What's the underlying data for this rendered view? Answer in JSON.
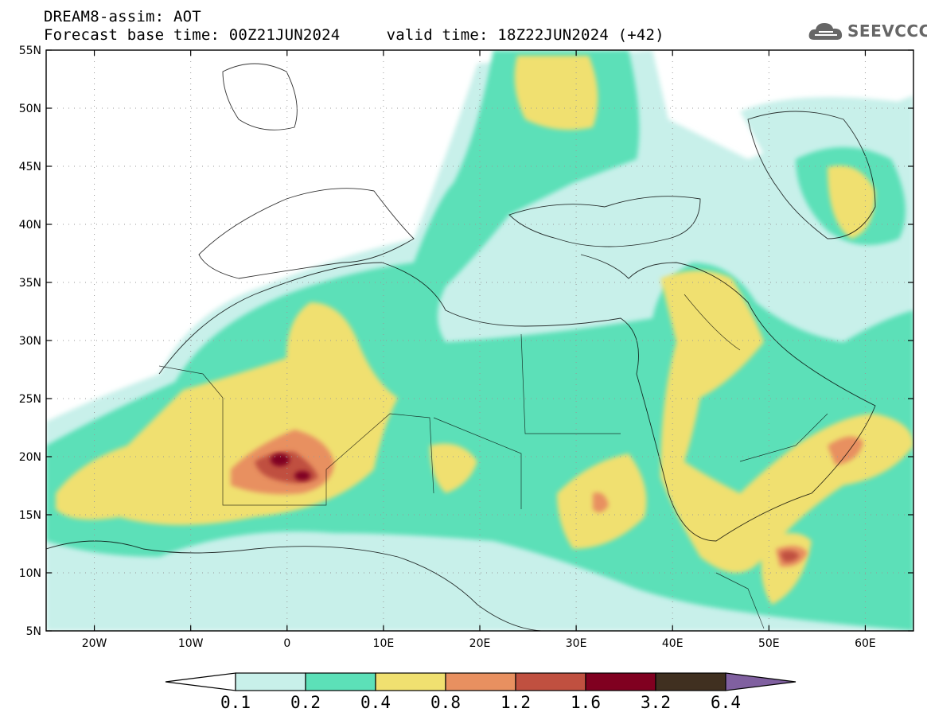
{
  "header": {
    "line1": "DREAM8-assim: AOT",
    "line2": "Forecast base time: 00Z21JUN2024     valid time: 18Z22JUN2024 (+42)"
  },
  "logo": {
    "text": "SEEVCCC",
    "icon": "cloud-icon",
    "color": "#666666"
  },
  "map": {
    "lon_range": [
      -25,
      65
    ],
    "lat_range": [
      5,
      55
    ],
    "x_ticks": [
      "20W",
      "10W",
      "0",
      "10E",
      "20E",
      "30E",
      "40E",
      "50E",
      "60E"
    ],
    "y_ticks": [
      "55N",
      "50N",
      "45N",
      "40N",
      "35N",
      "30N",
      "25N",
      "20N",
      "15N",
      "10N",
      "5N"
    ]
  },
  "colorbar": {
    "labels": [
      "0.1",
      "0.2",
      "0.4",
      "0.8",
      "1.2",
      "1.6",
      "3.2",
      "6.4"
    ],
    "colors": [
      "#ffffff",
      "#c8f0ea",
      "#5ce0b8",
      "#f0e070",
      "#e89060",
      "#c05040",
      "#800020",
      "#403020",
      "#8060a0"
    ]
  }
}
